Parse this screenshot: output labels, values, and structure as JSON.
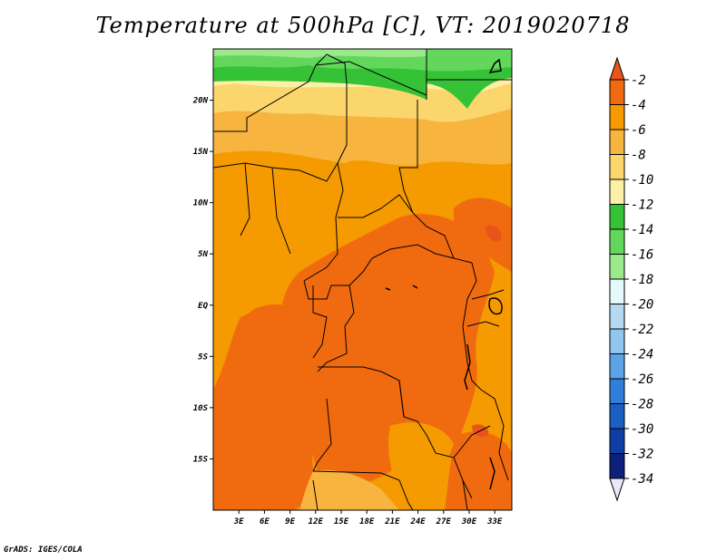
{
  "title": "Temperature at 500hPa [C], VT: 2019020718",
  "credit": "GrADS: IGES/COLA",
  "map": {
    "lat_labels": [
      "20N",
      "15N",
      "10N",
      "5N",
      "EQ",
      "5S",
      "10S",
      "15S"
    ],
    "lon_labels": [
      "3E",
      "6E",
      "9E",
      "12E",
      "15E",
      "18E",
      "21E",
      "24E",
      "27E",
      "30E",
      "33E"
    ],
    "lat_range": [
      -20,
      25
    ],
    "lon_range": [
      0,
      35
    ]
  },
  "colorbar": {
    "labels": [
      "-2",
      "-4",
      "-6",
      "-8",
      "-10",
      "-12",
      "-14",
      "-16",
      "-18",
      "-20",
      "-22",
      "-24",
      "-26",
      "-28",
      "-30",
      "-32",
      "-34"
    ],
    "colors": [
      "#e8541b",
      "#f06b10",
      "#f59a00",
      "#f7b43f",
      "#fbd66d",
      "#fdf0a6",
      "#36c237",
      "#63d75b",
      "#9be88d",
      "#e3f9fb",
      "#b5d8f3",
      "#91c4ee",
      "#5aa3e6",
      "#2f7fd8",
      "#1c5fc4",
      "#113ea5",
      "#0c1f79",
      "#ece6f9"
    ]
  }
}
